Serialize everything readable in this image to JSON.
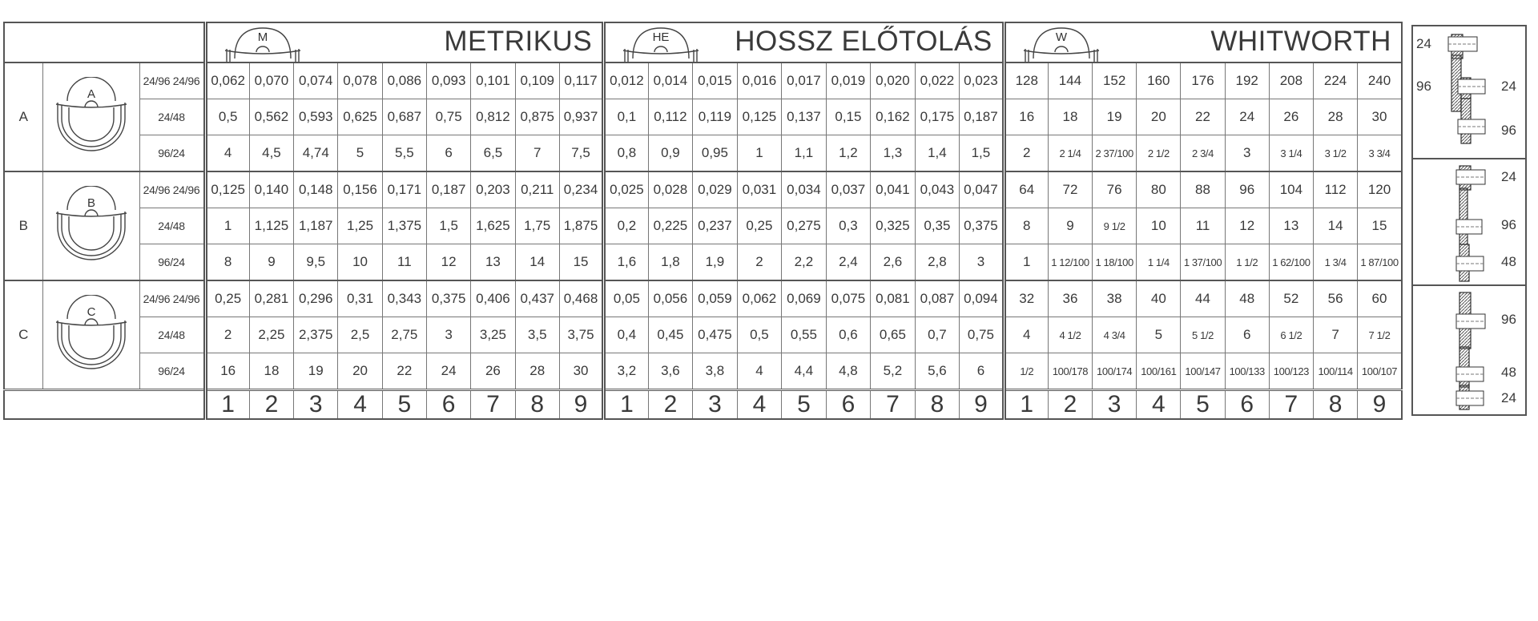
{
  "sections": [
    {
      "key": "metric",
      "title": "METRIKUS",
      "icon_letter": "M",
      "rows": [
        [
          "0,062",
          "0,070",
          "0,074",
          "0,078",
          "0,086",
          "0,093",
          "0,101",
          "0,109",
          "0,117"
        ],
        [
          "0,5",
          "0,562",
          "0,593",
          "0,625",
          "0,687",
          "0,75",
          "0,812",
          "0,875",
          "0,937"
        ],
        [
          "4",
          "4,5",
          "4,74",
          "5",
          "5,5",
          "6",
          "6,5",
          "7",
          "7,5"
        ],
        [
          "0,125",
          "0,140",
          "0,148",
          "0,156",
          "0,171",
          "0,187",
          "0,203",
          "0,211",
          "0,234"
        ],
        [
          "1",
          "1,125",
          "1,187",
          "1,25",
          "1,375",
          "1,5",
          "1,625",
          "1,75",
          "1,875"
        ],
        [
          "8",
          "9",
          "9,5",
          "10",
          "11",
          "12",
          "13",
          "14",
          "15"
        ],
        [
          "0,25",
          "0,281",
          "0,296",
          "0,31",
          "0,343",
          "0,375",
          "0,406",
          "0,437",
          "0,468"
        ],
        [
          "2",
          "2,25",
          "2,375",
          "2,5",
          "2,75",
          "3",
          "3,25",
          "3,5",
          "3,75"
        ],
        [
          "16",
          "18",
          "19",
          "20",
          "22",
          "24",
          "26",
          "28",
          "30"
        ]
      ]
    },
    {
      "key": "hossz",
      "title": "HOSSZ ELŐTOLÁS",
      "icon_letter": "HE",
      "rows": [
        [
          "0,012",
          "0,014",
          "0,015",
          "0,016",
          "0,017",
          "0,019",
          "0,020",
          "0,022",
          "0,023"
        ],
        [
          "0,1",
          "0,112",
          "0,119",
          "0,125",
          "0,137",
          "0,15",
          "0,162",
          "0,175",
          "0,187"
        ],
        [
          "0,8",
          "0,9",
          "0,95",
          "1",
          "1,1",
          "1,2",
          "1,3",
          "1,4",
          "1,5"
        ],
        [
          "0,025",
          "0,028",
          "0,029",
          "0,031",
          "0,034",
          "0,037",
          "0,041",
          "0,043",
          "0,047"
        ],
        [
          "0,2",
          "0,225",
          "0,237",
          "0,25",
          "0,275",
          "0,3",
          "0,325",
          "0,35",
          "0,375"
        ],
        [
          "1,6",
          "1,8",
          "1,9",
          "2",
          "2,2",
          "2,4",
          "2,6",
          "2,8",
          "3"
        ],
        [
          "0,05",
          "0,056",
          "0,059",
          "0,062",
          "0,069",
          "0,075",
          "0,081",
          "0,087",
          "0,094"
        ],
        [
          "0,4",
          "0,45",
          "0,475",
          "0,5",
          "0,55",
          "0,6",
          "0,65",
          "0,7",
          "0,75"
        ],
        [
          "3,2",
          "3,6",
          "3,8",
          "4",
          "4,4",
          "4,8",
          "5,2",
          "5,6",
          "6"
        ]
      ]
    },
    {
      "key": "whitworth",
      "title": "WHITWORTH",
      "icon_letter": "W",
      "rows": [
        [
          "128",
          "144",
          "152",
          "160",
          "176",
          "192",
          "208",
          "224",
          "240"
        ],
        [
          "16",
          "18",
          "19",
          "20",
          "22",
          "24",
          "26",
          "28",
          "30"
        ],
        [
          "2",
          "2 1/4",
          "2 37/100",
          "2 1/2",
          "2 3/4",
          "3",
          "3 1/4",
          "3 1/2",
          "3 3/4"
        ],
        [
          "64",
          "72",
          "76",
          "80",
          "88",
          "96",
          "104",
          "112",
          "120"
        ],
        [
          "8",
          "9",
          "9 1/2",
          "10",
          "11",
          "12",
          "13",
          "14",
          "15"
        ],
        [
          "1",
          "1 12/100",
          "1 18/100",
          "1 1/4",
          "1 37/100",
          "1 1/2",
          "1 62/100",
          "1 3/4",
          "1 87/100"
        ],
        [
          "32",
          "36",
          "38",
          "40",
          "44",
          "48",
          "52",
          "56",
          "60"
        ],
        [
          "4",
          "4 1/2",
          "4 3/4",
          "5",
          "5 1/2",
          "6",
          "6 1/2",
          "7",
          "7 1/2"
        ],
        [
          "1/2",
          "100/178",
          "100/174",
          "100/161",
          "100/147",
          "100/133",
          "100/123",
          "100/114",
          "100/107"
        ]
      ]
    }
  ],
  "groups": [
    {
      "letter": "A",
      "ratios": [
        "24/96 24/96",
        "24/48",
        "96/24"
      ]
    },
    {
      "letter": "B",
      "ratios": [
        "24/96 24/96",
        "24/48",
        "96/24"
      ]
    },
    {
      "letter": "C",
      "ratios": [
        "24/96 24/96",
        "24/48",
        "96/24"
      ]
    }
  ],
  "footer": [
    "1",
    "2",
    "3",
    "4",
    "5",
    "6",
    "7",
    "8",
    "9"
  ],
  "gears": [
    {
      "labels": [
        "24",
        "96",
        "24",
        "96"
      ]
    },
    {
      "labels": [
        "24",
        "96",
        "48"
      ]
    },
    {
      "labels": [
        "96",
        "48",
        "24"
      ]
    }
  ]
}
